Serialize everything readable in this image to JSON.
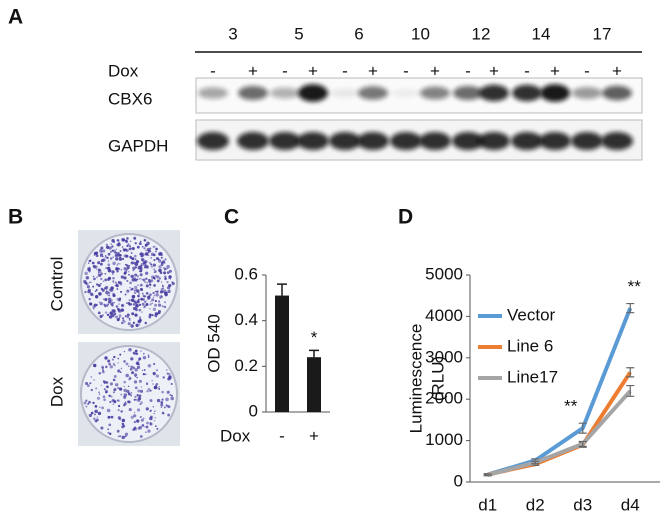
{
  "panel_labels": [
    "A",
    "B",
    "C",
    "D"
  ],
  "blot": {
    "cell_lines": [
      "3",
      "5",
      "6",
      "10",
      "12",
      "14",
      "17"
    ],
    "treatment_label": "Dox",
    "treatment_signs": [
      "-",
      "+",
      "-",
      "+",
      "-",
      "+",
      "-",
      "+",
      "-",
      "+",
      "-",
      "+",
      "-",
      "+"
    ],
    "rows": [
      "CBX6",
      "GAPDH"
    ]
  },
  "colony_assay": {
    "conditions": [
      "Control",
      "Dox"
    ]
  },
  "chart_data": [
    {
      "type": "bar",
      "categories": [
        "-",
        "+"
      ],
      "values": [
        0.51,
        0.24
      ],
      "errors": [
        0.05,
        0.03
      ],
      "color": "#1a1a1a",
      "xlabel": "Dox",
      "ylabel": "OD 540",
      "ylim": [
        0,
        0.6
      ],
      "yticks": [
        0,
        0.2,
        0.4,
        0.6
      ],
      "annotations": [
        {
          "text": "*",
          "category": "+"
        }
      ]
    },
    {
      "type": "line",
      "categories": [
        "d1",
        "d2",
        "d3",
        "d4"
      ],
      "series": [
        {
          "name": "Vector",
          "color": "#5b9bd5",
          "values": [
            180,
            520,
            1300,
            4200
          ],
          "errors": [
            20,
            40,
            120,
            110
          ]
        },
        {
          "name": "Line 6",
          "color": "#ed7d31",
          "values": [
            180,
            430,
            900,
            2650
          ],
          "errors": [
            20,
            30,
            60,
            110
          ]
        },
        {
          "name": "Line17",
          "color": "#a5a5a5",
          "values": [
            170,
            470,
            920,
            2200
          ],
          "errors": [
            20,
            30,
            60,
            130
          ]
        }
      ],
      "ylabel": [
        "Luminescence",
        "(RLU)"
      ],
      "ylim": [
        0,
        5000
      ],
      "yticks": [
        0,
        1000,
        2000,
        3000,
        4000,
        5000
      ],
      "legend": "upper left",
      "annotations": [
        {
          "text": "**",
          "category": "d3"
        },
        {
          "text": "**",
          "category": "d4"
        }
      ]
    }
  ]
}
